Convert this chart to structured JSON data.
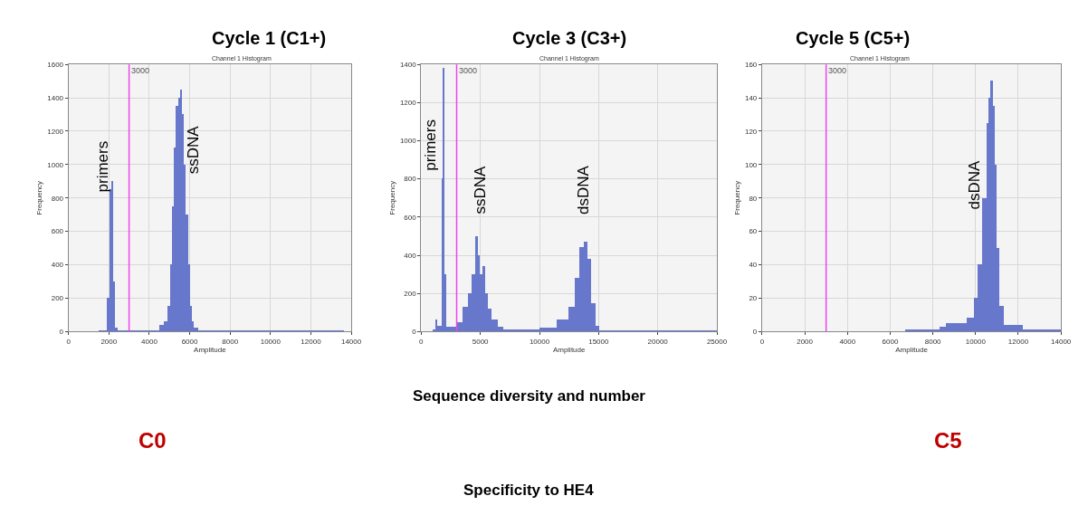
{
  "chart_data": [
    {
      "type": "histogram",
      "title": "Cycle 1 (C1+)",
      "subtitle": "Channel 1 Histogram",
      "xlabel": "Amplitude",
      "ylabel": "Frequency",
      "color": "#6677cc",
      "bins": [
        1500,
        1900,
        2000,
        2100,
        2200,
        2300,
        2400,
        4500,
        4700,
        4900,
        5000,
        5100,
        5200,
        5300,
        5400,
        5500,
        5600,
        5700,
        5800,
        5900,
        6000,
        6100,
        6200,
        6400,
        13600
      ],
      "values": [
        5,
        200,
        850,
        900,
        300,
        20,
        5,
        40,
        60,
        150,
        400,
        750,
        1100,
        1350,
        1400,
        1450,
        1300,
        1000,
        700,
        400,
        150,
        60,
        20,
        5
      ],
      "xlim": [
        0,
        14000
      ],
      "xticks": [
        0,
        2000,
        4000,
        6000,
        8000,
        10000,
        12000,
        14000
      ],
      "ylim": [
        0,
        1600
      ],
      "yticks": [
        0,
        200,
        400,
        600,
        800,
        1000,
        1200,
        1400,
        1600
      ],
      "grid": true,
      "ref_lines": [
        {
          "axis": "x",
          "value": 3000,
          "label": "3000",
          "color": "#ee44ee"
        }
      ],
      "annotations": [
        "primers",
        "ssDNA"
      ]
    },
    {
      "type": "histogram",
      "title": "Cycle 3 (C3+)",
      "subtitle": "Channel 1 Histogram",
      "xlabel": "Amplitude",
      "ylabel": "Frequency",
      "color": "#6677cc",
      "bins": [
        1000,
        1200,
        1400,
        1800,
        1900,
        2000,
        2100,
        3000,
        3500,
        4000,
        4300,
        4600,
        4800,
        5000,
        5200,
        5400,
        5700,
        6000,
        6500,
        7000,
        10000,
        11500,
        12500,
        13000,
        13400,
        13800,
        14100,
        14400,
        14800,
        15100,
        25000
      ],
      "values": [
        10,
        60,
        30,
        800,
        1380,
        300,
        25,
        50,
        130,
        200,
        300,
        500,
        400,
        300,
        340,
        200,
        120,
        60,
        25,
        8,
        20,
        60,
        130,
        280,
        440,
        470,
        380,
        150,
        30,
        3
      ],
      "xlim": [
        0,
        25000
      ],
      "xticks": [
        0,
        5000,
        10000,
        15000,
        20000,
        25000
      ],
      "ylim": [
        0,
        1400
      ],
      "yticks": [
        0,
        200,
        400,
        600,
        800,
        1000,
        1200,
        1400
      ],
      "grid": true,
      "ref_lines": [
        {
          "axis": "x",
          "value": 3000,
          "label": "3000",
          "color": "#ee44ee"
        }
      ],
      "annotations": [
        "primers",
        "ssDNA",
        "dsDNA"
      ]
    },
    {
      "type": "histogram",
      "title": "Cycle 5 (C5+)",
      "subtitle": "Channel 1 Histogram",
      "xlabel": "Amplitude",
      "ylabel": "Frequency",
      "color": "#6677cc",
      "bins": [
        6700,
        8300,
        8600,
        9200,
        9600,
        9900,
        10100,
        10300,
        10500,
        10600,
        10700,
        10800,
        10900,
        11000,
        11100,
        11300,
        12200,
        14000
      ],
      "values": [
        1,
        3,
        5,
        5,
        8,
        20,
        40,
        80,
        125,
        140,
        150,
        135,
        100,
        50,
        15,
        4,
        1
      ],
      "xlim": [
        0,
        14000
      ],
      "xticks": [
        0,
        2000,
        4000,
        6000,
        8000,
        10000,
        12000,
        14000
      ],
      "ylim": [
        0,
        160
      ],
      "yticks": [
        0,
        20,
        40,
        60,
        80,
        100,
        120,
        140,
        160
      ],
      "grid": true,
      "ref_lines": [
        {
          "axis": "x",
          "value": 3000,
          "label": "3000",
          "color": "#ee44ee"
        }
      ],
      "annotations": [
        "dsDNA"
      ]
    },
    {
      "type": "other",
      "annotations": [
        "Sequence diversity and number",
        "Specificity to HE4",
        "C0",
        "C5"
      ]
    }
  ]
}
